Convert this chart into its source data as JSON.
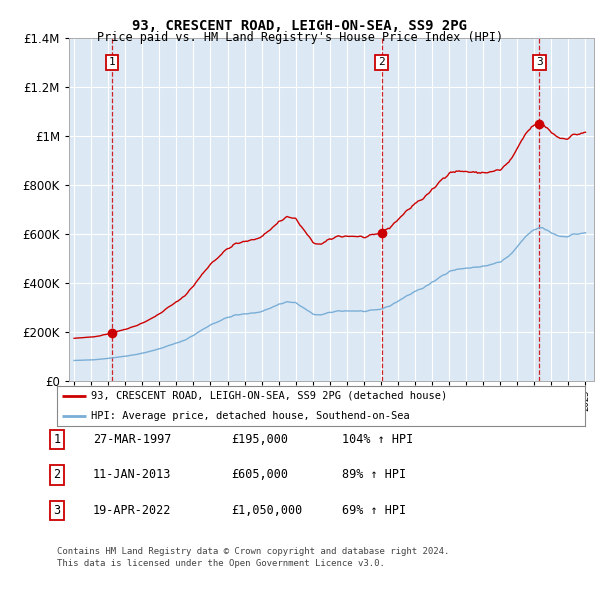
{
  "title1": "93, CRESCENT ROAD, LEIGH-ON-SEA, SS9 2PG",
  "title2": "Price paid vs. HM Land Registry's House Price Index (HPI)",
  "legend_line1": "93, CRESCENT ROAD, LEIGH-ON-SEA, SS9 2PG (detached house)",
  "legend_line2": "HPI: Average price, detached house, Southend-on-Sea",
  "footer1": "Contains HM Land Registry data © Crown copyright and database right 2024.",
  "footer2": "This data is licensed under the Open Government Licence v3.0.",
  "sale_points": [
    {
      "num": 1,
      "date": "27-MAR-1997",
      "price": 195000,
      "x": 1997.23
    },
    {
      "num": 2,
      "date": "11-JAN-2013",
      "price": 605000,
      "x": 2013.04
    },
    {
      "num": 3,
      "date": "19-APR-2022",
      "price": 1050000,
      "x": 2022.3
    }
  ],
  "table_rows": [
    [
      "1",
      "27-MAR-1997",
      "£195,000",
      "104% ↑ HPI"
    ],
    [
      "2",
      "11-JAN-2013",
      "£605,000",
      "89% ↑ HPI"
    ],
    [
      "3",
      "19-APR-2022",
      "£1,050,000",
      "69% ↑ HPI"
    ]
  ],
  "ylim": [
    0,
    1400000
  ],
  "xlim_start": 1994.7,
  "xlim_end": 2025.5,
  "bg_color": "#dce9f5",
  "red_color": "#cc0000",
  "blue_color": "#7aaed6",
  "grid_color": "#ffffff",
  "title1_fontsize": 10,
  "title2_fontsize": 8.5
}
